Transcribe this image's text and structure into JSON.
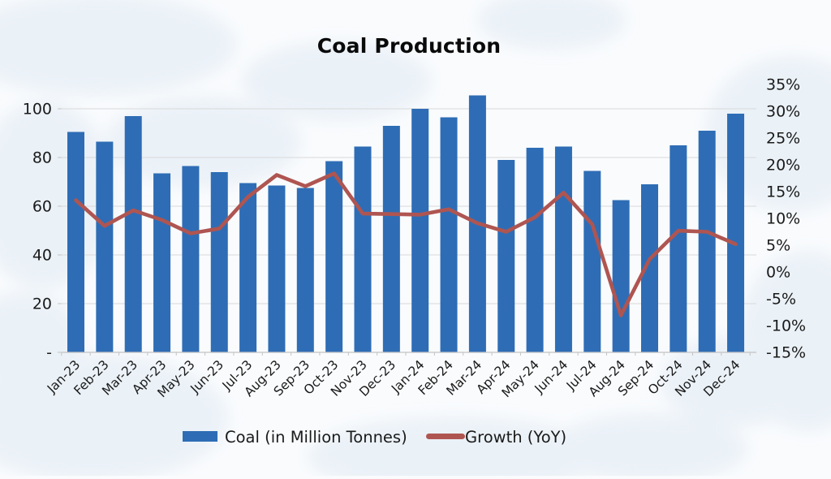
{
  "chart_data": {
    "type": "bar",
    "title": "Coal Production",
    "categories": [
      "Jan-23",
      "Feb-23",
      "Mar-23",
      "Apr-23",
      "May-23",
      "Jun-23",
      "Jul-23",
      "Aug-23",
      "Sep-23",
      "Oct-23",
      "Nov-23",
      "Dec-23",
      "Jan-24",
      "Feb-24",
      "Mar-24",
      "Apr-24",
      "May-24",
      "Jun-24",
      "Jul-24",
      "Aug-24",
      "Sep-24",
      "Oct-24",
      "Nov-24",
      "Dec-24"
    ],
    "series": [
      {
        "name": "Coal (in Million Tonnes)",
        "type": "bar",
        "axis": "left",
        "values": [
          90.5,
          86.5,
          97,
          73.5,
          76.5,
          74,
          69.5,
          68.5,
          67.5,
          78.5,
          84.5,
          93,
          100,
          96.5,
          105.5,
          79,
          84,
          84.5,
          74.5,
          62.5,
          69,
          85,
          91,
          98
        ]
      },
      {
        "name": "Growth (YoY)",
        "type": "line",
        "axis": "right",
        "values": [
          13.4,
          8.6,
          11.5,
          9.7,
          7.2,
          8.1,
          14.0,
          18.1,
          16.0,
          18.4,
          10.9,
          10.8,
          10.7,
          11.7,
          9.1,
          7.5,
          10.2,
          14.8,
          8.9,
          -8.1,
          2.4,
          7.7,
          7.5,
          5.2
        ]
      }
    ],
    "y_left_axis": {
      "range": [
        0,
        100
      ],
      "tick_labels": [
        "100",
        "80",
        "60",
        "40",
        "20",
        "-"
      ],
      "tick_values": [
        100,
        80,
        60,
        40,
        20,
        0
      ]
    },
    "y_right_axis": {
      "range": [
        -15,
        35
      ],
      "tick_labels": [
        "35%",
        "30%",
        "25%",
        "20%",
        "15%",
        "10%",
        "5%",
        "0%",
        "-5%",
        "-10%",
        "-15%"
      ],
      "tick_values": [
        35,
        30,
        25,
        20,
        15,
        10,
        5,
        0,
        -5,
        -10,
        -15
      ]
    },
    "legend": {
      "position": "bottom",
      "coal_label": "Coal (in Million Tonnes)",
      "growth_label": "Growth (YoY)"
    },
    "layout": {
      "grid": "horizontal",
      "x_label_rotation": -45
    },
    "colors": {
      "bar": "#2E6DB5",
      "line": "#AF5551",
      "gridline": "#D9D9D9",
      "axis_line": "#C3C3C3",
      "text": "#1A1A1A",
      "background": "#F9FBFD",
      "map_watermark": "#E2EBF4"
    }
  }
}
